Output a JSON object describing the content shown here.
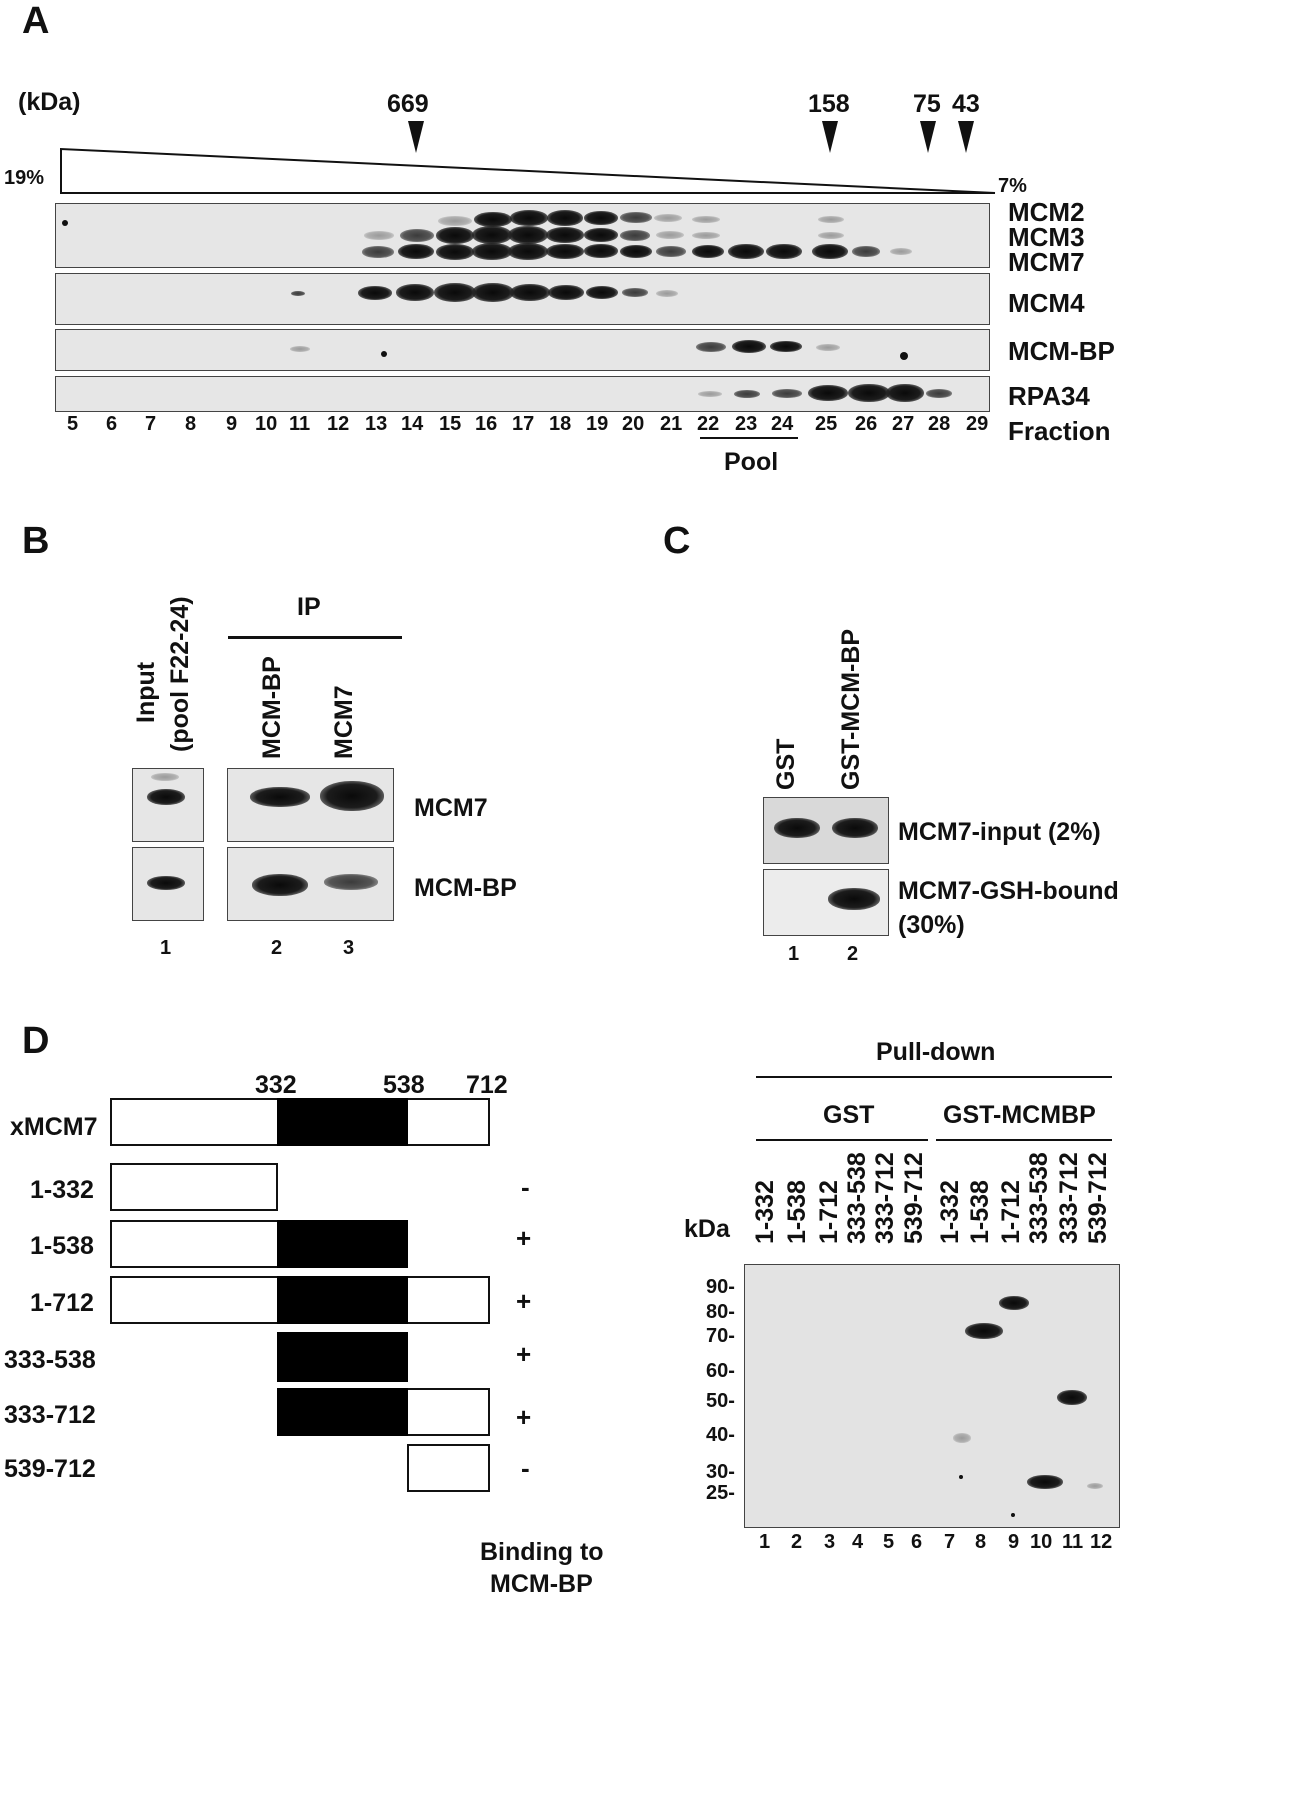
{
  "panel_a": {
    "letter": "A",
    "kda_label": "(kDa)",
    "markers": [
      "669",
      "158",
      "75",
      "43"
    ],
    "gradient_high": "19%",
    "gradient_low": "7%",
    "blot_labels": [
      "MCM2",
      "MCM3",
      "MCM7",
      "MCM4",
      "MCM-BP",
      "RPA34"
    ],
    "fractions": [
      "5",
      "6",
      "7",
      "8",
      "9",
      "10",
      "11",
      "12",
      "13",
      "14",
      "15",
      "16",
      "17",
      "18",
      "19",
      "20",
      "21",
      "22",
      "23",
      "24",
      "25",
      "26",
      "27",
      "28",
      "29"
    ],
    "fraction_label": "Fraction",
    "pool_label": "Pool"
  },
  "panel_b": {
    "letter": "B",
    "input_label_1": "Input",
    "input_label_2": "(pool F22-24)",
    "ip_label": "IP",
    "lane_mcmbp": "MCM-BP",
    "lane_mcm7": "MCM7",
    "row_mcm7": "MCM7",
    "row_mcmbp": "MCM-BP",
    "lanes": [
      "1",
      "2",
      "3"
    ]
  },
  "panel_c": {
    "letter": "C",
    "lane_gst": "GST",
    "lane_gst_mcmbp": "GST-MCM-BP",
    "row_input": "MCM7-input (2%)",
    "row_bound_1": "MCM7-GSH-bound",
    "row_bound_2": "(30%)",
    "lanes": [
      "1",
      "2"
    ]
  },
  "panel_d": {
    "letter": "D",
    "positions": [
      "332",
      "538",
      "712"
    ],
    "constructs": [
      {
        "name": "xMCM7",
        "binding": ""
      },
      {
        "name": "1-332",
        "binding": "-"
      },
      {
        "name": "1-538",
        "binding": "+"
      },
      {
        "name": "1-712",
        "binding": "+"
      },
      {
        "name": "333-538",
        "binding": "+"
      },
      {
        "name": "333-712",
        "binding": "+"
      },
      {
        "name": "539-712",
        "binding": "-"
      }
    ],
    "binding_label_1": "Binding to",
    "binding_label_2": "MCM-BP",
    "pulldown_label": "Pull-down",
    "gst_label": "GST",
    "gst_mcmbp_label": "GST-MCMBP",
    "kda_label": "kDa",
    "lane_constructs": [
      "1-332",
      "1-538",
      "1-712",
      "333-538",
      "333-712",
      "539-712",
      "1-332",
      "1-538",
      "1-712",
      "333-538",
      "333-712",
      "539-712"
    ],
    "mw_markers": [
      "90-",
      "80-",
      "70-",
      "60-",
      "50-",
      "40-",
      "30-",
      "25-"
    ],
    "lanes": [
      "1",
      "2",
      "3",
      "4",
      "5",
      "6",
      "7",
      "8",
      "9",
      "10",
      "11",
      "12"
    ]
  }
}
